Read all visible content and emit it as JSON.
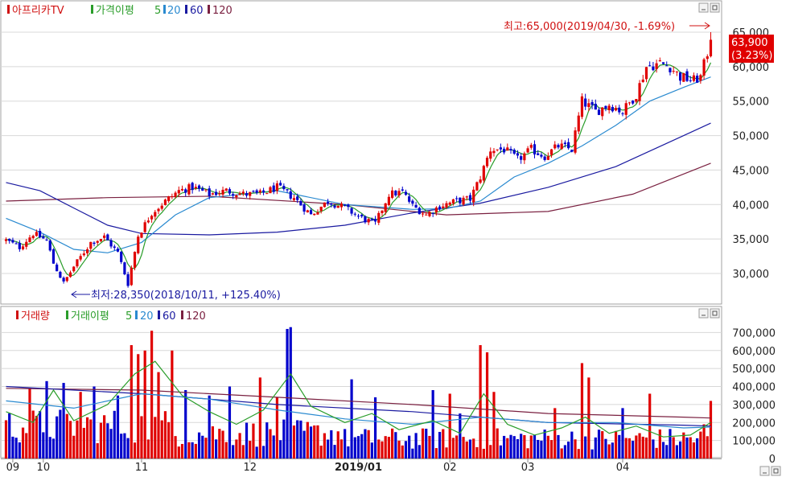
{
  "chart_data": [
    {
      "type": "candlestick",
      "panel": "price",
      "legend": [
        {
          "label": "아프리카TV",
          "color": "#d01010"
        },
        {
          "label": "가격이평",
          "color": "#2a9d2a"
        },
        {
          "label": "5",
          "color": "#2a9d2a"
        },
        {
          "label": "20",
          "color": "#2a8ad0"
        },
        {
          "label": "60",
          "color": "#1a1aa0"
        },
        {
          "label": "120",
          "color": "#7a2040"
        }
      ],
      "yticks": [
        "65,000",
        "60,000",
        "55,000",
        "50,000",
        "45,000",
        "40,000",
        "35,000",
        "30,000"
      ],
      "ytick_values": [
        65000,
        60000,
        55000,
        50000,
        45000,
        40000,
        35000,
        30000
      ],
      "ylim": [
        25800,
        68500
      ],
      "high_annotation": "최고:65,000(2019/04/30, -1.69%)",
      "low_annotation": "최저:28,350(2018/10/11, +125.40%)",
      "last_price": "63,900",
      "last_change": "(3.23%)",
      "anchors": [
        [
          0,
          34800
        ],
        [
          4,
          33800
        ],
        [
          8,
          35800
        ],
        [
          12,
          34800
        ],
        [
          14,
          31500
        ],
        [
          17,
          28600
        ],
        [
          20,
          31000
        ],
        [
          25,
          34500
        ],
        [
          29,
          35300
        ],
        [
          33,
          33000
        ],
        [
          36,
          28500
        ],
        [
          39,
          35500
        ],
        [
          43,
          38800
        ],
        [
          47,
          40500
        ],
        [
          51,
          42000
        ],
        [
          55,
          42500
        ],
        [
          60,
          41500
        ],
        [
          65,
          42000
        ],
        [
          70,
          41500
        ],
        [
          75,
          41500
        ],
        [
          80,
          42500
        ],
        [
          85,
          41000
        ],
        [
          90,
          38500
        ],
        [
          95,
          40500
        ],
        [
          100,
          39500
        ],
        [
          105,
          38000
        ],
        [
          109,
          37200
        ],
        [
          113,
          41500
        ],
        [
          117,
          41800
        ],
        [
          120,
          39800
        ],
        [
          124,
          38500
        ],
        [
          128,
          39800
        ],
        [
          133,
          40500
        ],
        [
          137,
          40800
        ],
        [
          140,
          44000
        ],
        [
          143,
          48000
        ],
        [
          147,
          48000
        ],
        [
          151,
          46500
        ],
        [
          155,
          48000
        ],
        [
          159,
          47000
        ],
        [
          163,
          48500
        ],
        [
          167,
          48000
        ],
        [
          170,
          55000
        ],
        [
          174,
          53500
        ],
        [
          178,
          54500
        ],
        [
          182,
          53500
        ],
        [
          186,
          56000
        ],
        [
          189,
          60000
        ],
        [
          193,
          60500
        ],
        [
          196,
          60000
        ],
        [
          199,
          58500
        ],
        [
          203,
          58000
        ],
        [
          205,
          58500
        ],
        [
          207,
          62000
        ],
        [
          208,
          63900
        ]
      ],
      "ma_lines": [
        {
          "name": "120",
          "color": "#7a2040",
          "points": [
            [
              0,
              40500
            ],
            [
              30,
              41000
            ],
            [
              60,
              41200
            ],
            [
              100,
              40000
            ],
            [
              130,
              38500
            ],
            [
              160,
              39000
            ],
            [
              185,
              41500
            ],
            [
              208,
              46000
            ]
          ]
        },
        {
          "name": "60",
          "color": "#1a1aa0",
          "points": [
            [
              0,
              43200
            ],
            [
              10,
              42000
            ],
            [
              20,
              39500
            ],
            [
              30,
              37000
            ],
            [
              40,
              35800
            ],
            [
              60,
              35600
            ],
            [
              80,
              36000
            ],
            [
              100,
              37000
            ],
            [
              120,
              38800
            ],
            [
              140,
              40200
            ],
            [
              160,
              42500
            ],
            [
              180,
              45500
            ],
            [
              200,
              50000
            ],
            [
              208,
              51800
            ]
          ]
        },
        {
          "name": "20",
          "color": "#2a8ad0",
          "points": [
            [
              0,
              38000
            ],
            [
              10,
              36000
            ],
            [
              20,
              33500
            ],
            [
              30,
              33000
            ],
            [
              40,
              34500
            ],
            [
              50,
              38500
            ],
            [
              60,
              41000
            ],
            [
              80,
              42000
            ],
            [
              100,
              40000
            ],
            [
              120,
              39300
            ],
            [
              130,
              39400
            ],
            [
              140,
              40500
            ],
            [
              150,
              44000
            ],
            [
              160,
              46000
            ],
            [
              170,
              48500
            ],
            [
              180,
              51500
            ],
            [
              190,
              55000
            ],
            [
              200,
              57000
            ],
            [
              208,
              58500
            ]
          ]
        }
      ],
      "series_count": 209
    },
    {
      "type": "bar",
      "panel": "volume",
      "legend": [
        {
          "label": "거래량",
          "color": "#d01010"
        },
        {
          "label": "거래이평",
          "color": "#2a9d2a"
        },
        {
          "label": "5",
          "color": "#2a9d2a"
        },
        {
          "label": "20",
          "color": "#2a8ad0"
        },
        {
          "label": "60",
          "color": "#1a1aa0"
        },
        {
          "label": "120",
          "color": "#7a2040"
        }
      ],
      "yticks": [
        "700,000",
        "600,000",
        "500,000",
        "400,000",
        "300,000",
        "200,000",
        "100,000",
        "0"
      ],
      "ytick_values": [
        700000,
        600000,
        500000,
        400000,
        300000,
        200000,
        100000,
        0
      ],
      "ylim": [
        0,
        760000
      ],
      "spikes": [
        [
          7,
          390000
        ],
        [
          12,
          430000
        ],
        [
          17,
          420000
        ],
        [
          22,
          370000
        ],
        [
          26,
          400000
        ],
        [
          33,
          350000
        ],
        [
          37,
          630000
        ],
        [
          39,
          580000
        ],
        [
          41,
          600000
        ],
        [
          43,
          710000
        ],
        [
          45,
          480000
        ],
        [
          49,
          600000
        ],
        [
          53,
          380000
        ],
        [
          60,
          350000
        ],
        [
          66,
          400000
        ],
        [
          75,
          450000
        ],
        [
          80,
          340000
        ],
        [
          83,
          720000
        ],
        [
          84,
          730000
        ],
        [
          102,
          440000
        ],
        [
          109,
          340000
        ],
        [
          126,
          380000
        ],
        [
          131,
          360000
        ],
        [
          134,
          250000
        ],
        [
          140,
          630000
        ],
        [
          142,
          590000
        ],
        [
          144,
          370000
        ],
        [
          162,
          280000
        ],
        [
          170,
          530000
        ],
        [
          172,
          450000
        ],
        [
          182,
          280000
        ],
        [
          190,
          360000
        ],
        [
          206,
          190000
        ],
        [
          208,
          320000
        ]
      ],
      "ma_lines": [
        {
          "name": "120",
          "color": "#7a2040",
          "points": [
            [
              0,
              390000
            ],
            [
              40,
              380000
            ],
            [
              80,
              340000
            ],
            [
              120,
              300000
            ],
            [
              160,
              250000
            ],
            [
              200,
              230000
            ],
            [
              208,
              225000
            ]
          ]
        },
        {
          "name": "60",
          "color": "#1a1aa0",
          "points": [
            [
              0,
              400000
            ],
            [
              40,
              360000
            ],
            [
              80,
              300000
            ],
            [
              120,
              260000
            ],
            [
              160,
              200000
            ],
            [
              200,
              185000
            ],
            [
              208,
              180000
            ]
          ]
        },
        {
          "name": "20",
          "color": "#2a8ad0",
          "points": [
            [
              0,
              320000
            ],
            [
              20,
              280000
            ],
            [
              40,
              360000
            ],
            [
              60,
              330000
            ],
            [
              80,
              270000
            ],
            [
              100,
              220000
            ],
            [
              120,
              190000
            ],
            [
              140,
              230000
            ],
            [
              160,
              200000
            ],
            [
              180,
              200000
            ],
            [
              200,
              170000
            ],
            [
              208,
              175000
            ]
          ]
        },
        {
          "name": "5",
          "color": "#2a9d2a",
          "points": [
            [
              0,
              260000
            ],
            [
              8,
              200000
            ],
            [
              14,
              380000
            ],
            [
              20,
              210000
            ],
            [
              30,
              300000
            ],
            [
              38,
              470000
            ],
            [
              44,
              540000
            ],
            [
              52,
              350000
            ],
            [
              60,
              260000
            ],
            [
              68,
              190000
            ],
            [
              76,
              270000
            ],
            [
              84,
              470000
            ],
            [
              90,
              290000
            ],
            [
              100,
              200000
            ],
            [
              108,
              250000
            ],
            [
              116,
              160000
            ],
            [
              126,
              210000
            ],
            [
              134,
              140000
            ],
            [
              141,
              360000
            ],
            [
              148,
              190000
            ],
            [
              156,
              130000
            ],
            [
              164,
              170000
            ],
            [
              171,
              230000
            ],
            [
              178,
              140000
            ],
            [
              186,
              180000
            ],
            [
              194,
              120000
            ],
            [
              202,
              130000
            ],
            [
              208,
              200000
            ]
          ]
        }
      ]
    }
  ],
  "x_axis": {
    "labels": [
      {
        "text": "09",
        "index": 2
      },
      {
        "text": "10",
        "index": 11
      },
      {
        "text": "11",
        "index": 40
      },
      {
        "text": "12",
        "index": 72
      },
      {
        "text": "2019/01",
        "index": 104
      },
      {
        "text": "02",
        "index": 131
      },
      {
        "text": "03",
        "index": 154
      },
      {
        "text": "04",
        "index": 182
      }
    ],
    "bold_label": "2019/01"
  },
  "colors": {
    "up": "#e00000",
    "down": "#0000cc",
    "grid": "#d8d8d8"
  }
}
